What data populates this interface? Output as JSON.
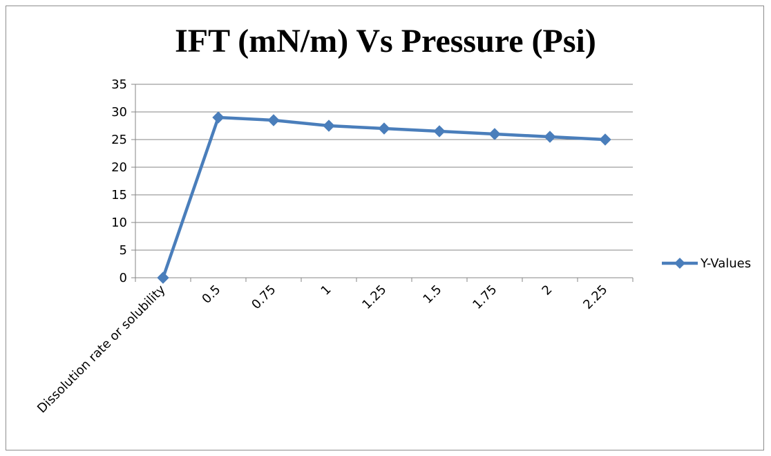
{
  "chart_data": {
    "type": "line",
    "title": "IFT (mN/m) Vs Pressure (Psi)",
    "xlabel": "",
    "ylabel": "",
    "categories": [
      "Dissolution rate or solubility",
      "0.5",
      "0.75",
      "1",
      "1.25",
      "1.5",
      "1.75",
      "2",
      "2.25"
    ],
    "series": [
      {
        "name": "Y-Values",
        "values": [
          0,
          29,
          28.5,
          27.5,
          27,
          26.5,
          26,
          25.5,
          25
        ],
        "color": "#4a7ebb"
      }
    ],
    "ylim": [
      0,
      35
    ],
    "yticks": [
      "0",
      "5",
      "10",
      "15",
      "20",
      "25",
      "30",
      "35"
    ],
    "grid": true,
    "legend": "right",
    "marker": "diamond"
  }
}
